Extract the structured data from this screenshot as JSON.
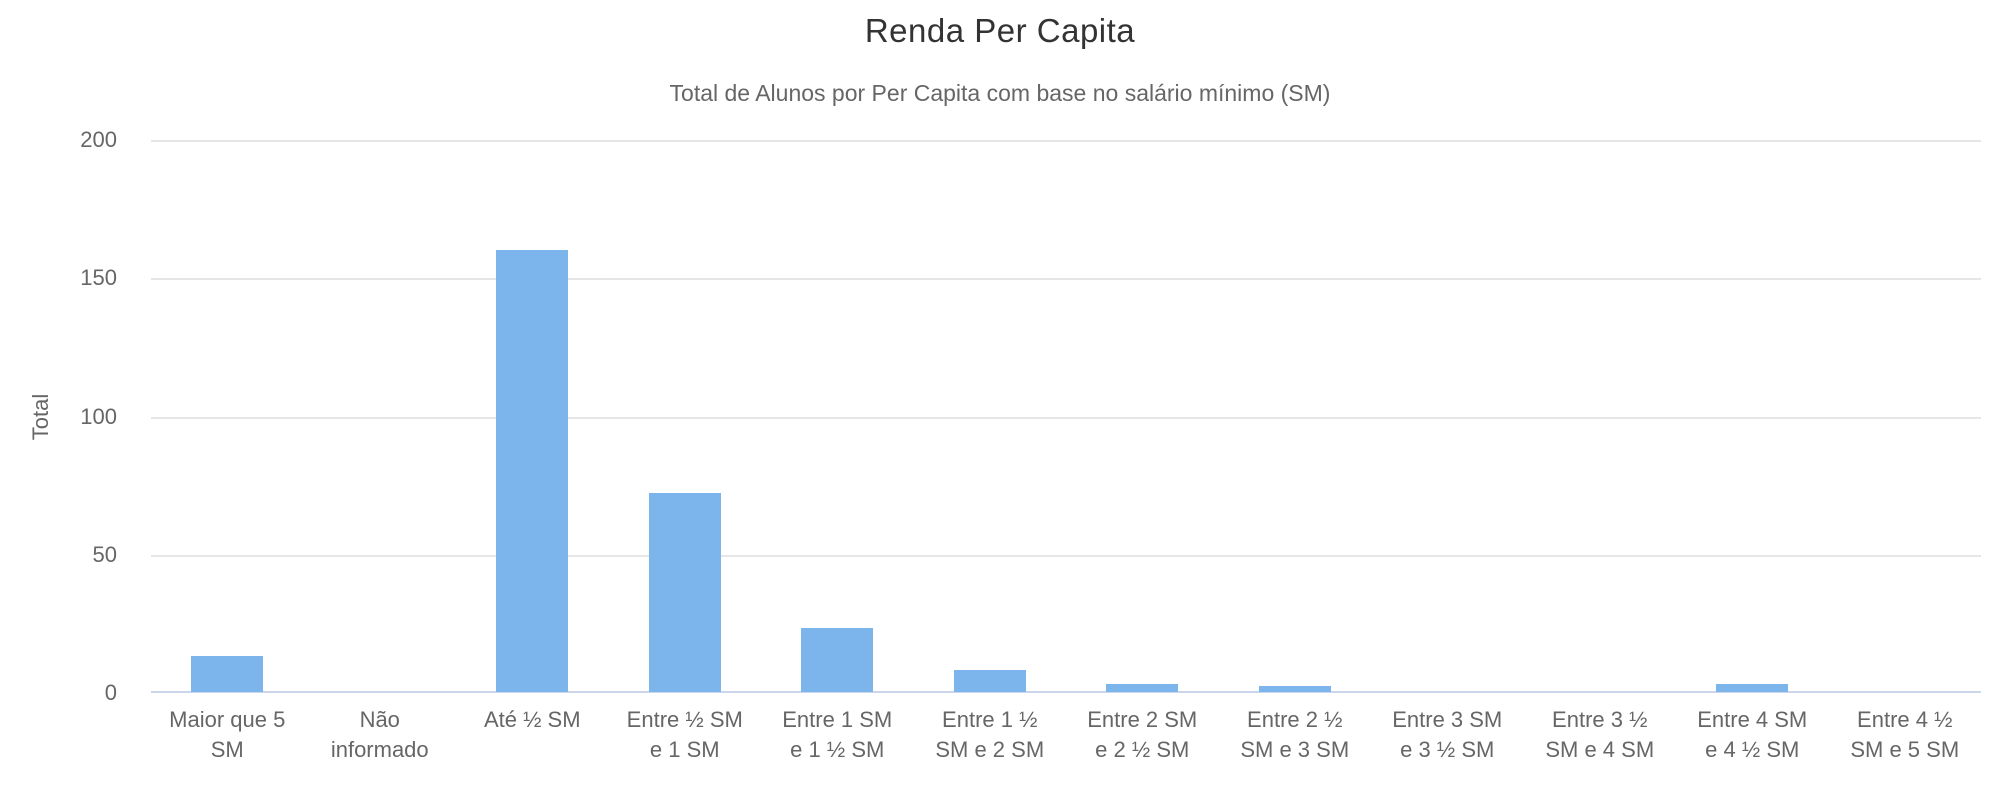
{
  "chart_data": {
    "type": "bar",
    "title": "Renda Per Capita",
    "subtitle": "Total de Alunos por Per Capita com base no salário mínimo (SM)",
    "xlabel": "",
    "ylabel": "Total",
    "ylim": [
      0,
      200
    ],
    "yticks": [
      0,
      50,
      100,
      150,
      200
    ],
    "grid": true,
    "legend": "none",
    "categories": [
      "Maior que 5 SM",
      "Não informado",
      "Até ½ SM",
      "Entre ½ SM e 1 SM",
      "Entre 1 SM e 1 ½ SM",
      "Entre 1 ½ SM e 2 SM",
      "Entre 2 SM e 2 ½ SM",
      "Entre 2 ½ SM e 3 SM",
      "Entre 3 SM e 3 ½ SM",
      "Entre 3 ½ SM e 4 SM",
      "Entre 4 SM e 4 ½ SM",
      "Entre 4 ½ SM e 5 SM"
    ],
    "category_lines": [
      [
        "Maior que 5",
        "SM"
      ],
      [
        "Não",
        "informado"
      ],
      [
        "Até ½ SM"
      ],
      [
        "Entre ½ SM",
        "e 1 SM"
      ],
      [
        "Entre 1 SM",
        "e 1 ½ SM"
      ],
      [
        "Entre 1 ½",
        "SM e 2 SM"
      ],
      [
        "Entre 2 SM",
        "e 2 ½ SM"
      ],
      [
        "Entre 2 ½",
        "SM e 3 SM"
      ],
      [
        "Entre 3 SM",
        "e 3 ½ SM"
      ],
      [
        "Entre 3 ½",
        "SM e 4 SM"
      ],
      [
        "Entre 4 SM",
        "e 4 ½ SM"
      ],
      [
        "Entre 4 ½",
        "SM e 5 SM"
      ]
    ],
    "values": [
      13,
      0,
      160,
      72,
      23,
      8,
      3,
      2,
      0,
      0,
      3,
      0
    ]
  },
  "colors": {
    "bar": "#7cb5ec",
    "grid_line": "#e6e6e6",
    "axis_line": "#ccd6eb",
    "title_text": "#333333",
    "label_text": "#666666"
  }
}
